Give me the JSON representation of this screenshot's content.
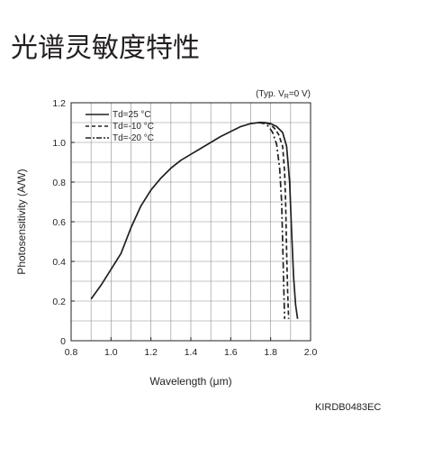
{
  "page": {
    "title": "光谱灵敏度特性",
    "doc_code": "KIRDB0483EC"
  },
  "chart_data": {
    "type": "line",
    "note": "(Typ. VR=0 V)",
    "note_parts": {
      "prefix": "(Typ. V",
      "sub": "R",
      "suffix": "=0 V)"
    },
    "xlabel": "Wavelength (μm)",
    "ylabel": "Photosensitivity (A/W)",
    "xlim": [
      0.8,
      2.0
    ],
    "ylim": [
      0,
      1.2
    ],
    "x_ticks": [
      0.8,
      1.0,
      1.2,
      1.4,
      1.6,
      1.8,
      2.0
    ],
    "x_tick_labels": [
      "0.8",
      "1.0",
      "1.2",
      "1.4",
      "1.6",
      "1.8",
      "2.0"
    ],
    "y_ticks": [
      0,
      0.2,
      0.4,
      0.6,
      0.8,
      1.0,
      1.2
    ],
    "y_tick_labels": [
      "0",
      "0.2",
      "0.4",
      "0.6",
      "0.8",
      "1.0",
      "1.2"
    ],
    "grid": true,
    "legend_position": "top-left",
    "colors": {
      "line": "#231f20",
      "grid": "#8c8c8c",
      "axis": "#231f20"
    },
    "series": [
      {
        "name": "Td=25 °C",
        "dash": "solid",
        "points": [
          [
            0.9,
            0.21
          ],
          [
            0.95,
            0.28
          ],
          [
            1.0,
            0.36
          ],
          [
            1.05,
            0.44
          ],
          [
            1.1,
            0.57
          ],
          [
            1.15,
            0.68
          ],
          [
            1.2,
            0.76
          ],
          [
            1.25,
            0.82
          ],
          [
            1.3,
            0.87
          ],
          [
            1.35,
            0.91
          ],
          [
            1.4,
            0.94
          ],
          [
            1.45,
            0.97
          ],
          [
            1.5,
            1.0
          ],
          [
            1.55,
            1.03
          ],
          [
            1.6,
            1.055
          ],
          [
            1.65,
            1.08
          ],
          [
            1.7,
            1.095
          ],
          [
            1.74,
            1.1
          ],
          [
            1.77,
            1.1
          ],
          [
            1.8,
            1.095
          ],
          [
            1.83,
            1.08
          ],
          [
            1.86,
            1.05
          ],
          [
            1.88,
            0.98
          ],
          [
            1.895,
            0.8
          ],
          [
            1.905,
            0.55
          ],
          [
            1.915,
            0.32
          ],
          [
            1.925,
            0.18
          ],
          [
            1.935,
            0.11
          ]
        ]
      },
      {
        "name": "Td=-10 °C",
        "dash": "dash",
        "points": [
          [
            1.74,
            1.1
          ],
          [
            1.77,
            1.1
          ],
          [
            1.8,
            1.09
          ],
          [
            1.82,
            1.07
          ],
          [
            1.84,
            1.04
          ],
          [
            1.86,
            0.98
          ],
          [
            1.87,
            0.85
          ],
          [
            1.875,
            0.7
          ],
          [
            1.88,
            0.45
          ],
          [
            1.885,
            0.25
          ],
          [
            1.89,
            0.11
          ]
        ]
      },
      {
        "name": "Td=-20 °C",
        "dash": "dashdot",
        "points": [
          [
            1.74,
            1.1
          ],
          [
            1.77,
            1.095
          ],
          [
            1.79,
            1.08
          ],
          [
            1.81,
            1.05
          ],
          [
            1.83,
            0.99
          ],
          [
            1.845,
            0.87
          ],
          [
            1.855,
            0.7
          ],
          [
            1.86,
            0.5
          ],
          [
            1.865,
            0.3
          ],
          [
            1.87,
            0.11
          ]
        ]
      }
    ]
  }
}
